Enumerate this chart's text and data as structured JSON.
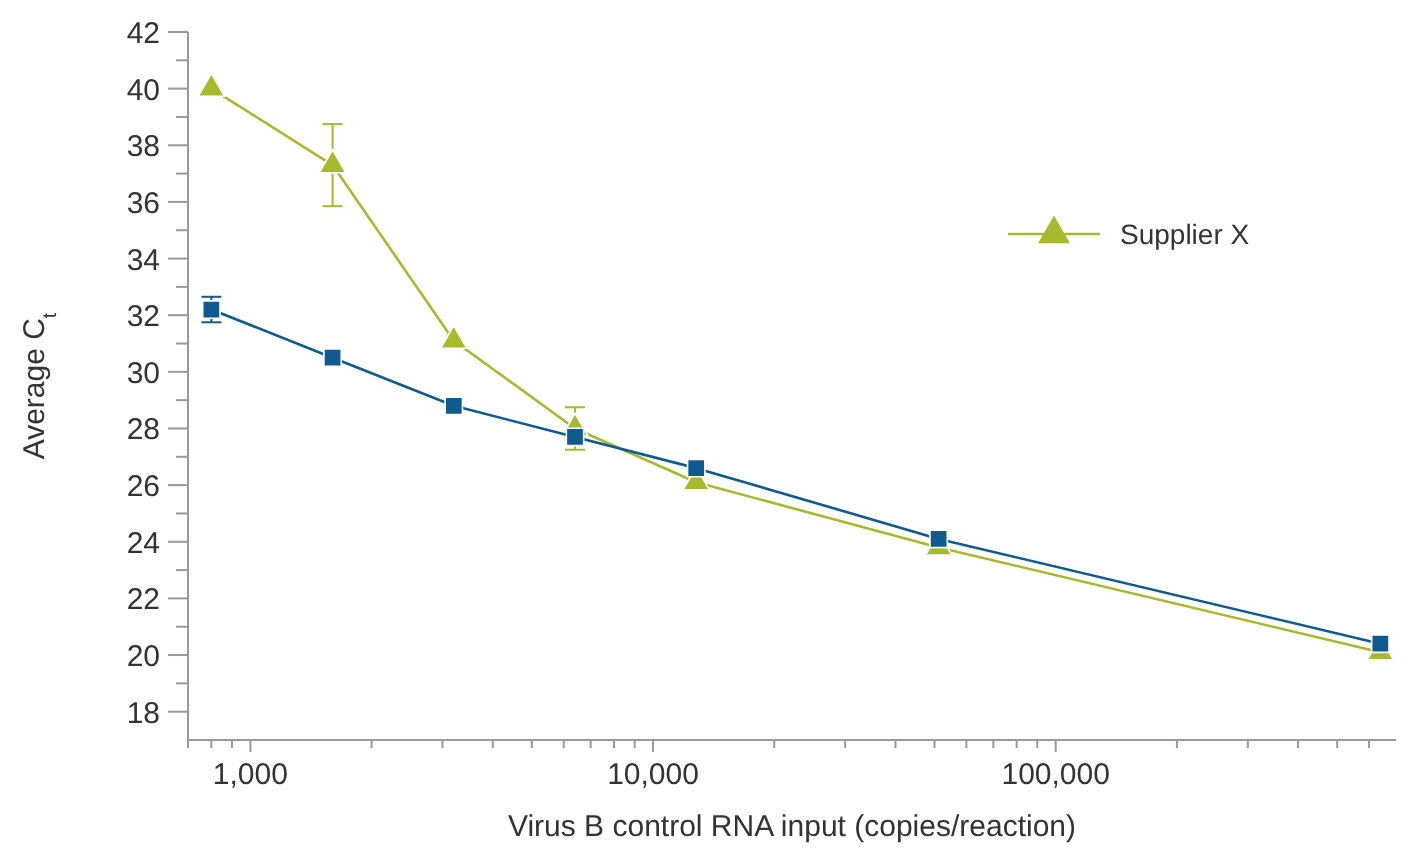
{
  "chart_data": {
    "type": "line",
    "xlabel": "Virus B control RNA input (copies/reaction)",
    "ylabel": "Average C$_{t}$",
    "log": "x",
    "x": [
      800,
      1600,
      3200,
      6400,
      12800,
      51200,
      640000
    ],
    "xlim": [
      700,
      700000
    ],
    "xticks": [
      {
        "value": 700,
        "label": null
      },
      {
        "value": 800,
        "label": null
      },
      {
        "value": 900,
        "label": null
      },
      {
        "value": 1000,
        "label": "1,000"
      },
      {
        "value": 2000,
        "label": null
      },
      {
        "value": 3000,
        "label": null
      },
      {
        "value": 4000,
        "label": null
      },
      {
        "value": 5000,
        "label": null
      },
      {
        "value": 6000,
        "label": null
      },
      {
        "value": 7000,
        "label": null
      },
      {
        "value": 8000,
        "label": null
      },
      {
        "value": 9000,
        "label": null
      },
      {
        "value": 10000,
        "label": "10,000"
      },
      {
        "value": 20000,
        "label": null
      },
      {
        "value": 30000,
        "label": null
      },
      {
        "value": 40000,
        "label": null
      },
      {
        "value": 50000,
        "label": null
      },
      {
        "value": 60000,
        "label": null
      },
      {
        "value": 70000,
        "label": null
      },
      {
        "value": 80000,
        "label": null
      },
      {
        "value": 90000,
        "label": null
      },
      {
        "value": 100000,
        "label": "100,000"
      },
      {
        "value": 200000,
        "label": null
      },
      {
        "value": 300000,
        "label": null
      },
      {
        "value": 400000,
        "label": null
      },
      {
        "value": 500000,
        "label": null
      },
      {
        "value": 600000,
        "label": null
      }
    ],
    "ylim": [
      17,
      42
    ],
    "yticks": [
      18,
      {
        "value": 19,
        "label": null
      },
      20,
      {
        "value": 21,
        "label": null
      },
      22,
      {
        "value": 23,
        "label": null
      },
      24,
      {
        "value": 25,
        "label": null
      },
      26,
      {
        "value": 27,
        "label": null
      },
      28,
      {
        "value": 29,
        "label": null
      },
      30,
      {
        "value": 31,
        "label": null
      },
      32,
      {
        "value": 33,
        "label": null
      },
      34,
      {
        "value": 35,
        "label": null
      },
      36,
      {
        "value": 37,
        "label": null
      },
      38,
      {
        "value": 39,
        "label": null
      },
      40,
      {
        "value": 41,
        "label": null
      },
      42
    ],
    "grid": false,
    "legend": "top right",
    "series": [
      {
        "color": "#0f5a8f",
        "marker": "square",
        "values": [
          32.2,
          30.5,
          28.8,
          27.7,
          26.6,
          24.1,
          20.4
        ],
        "errors": [
          0.45,
          null,
          null,
          null,
          null,
          null,
          null
        ]
      },
      {
        "name": "Supplier X",
        "color": "#a9b92e",
        "marker": "triangle",
        "values": [
          40,
          37.3,
          31.1,
          28.0,
          26.1,
          23.8,
          20.1
        ],
        "errors": [
          null,
          1.45,
          null,
          0.75,
          null,
          null,
          null
        ]
      }
    ]
  }
}
